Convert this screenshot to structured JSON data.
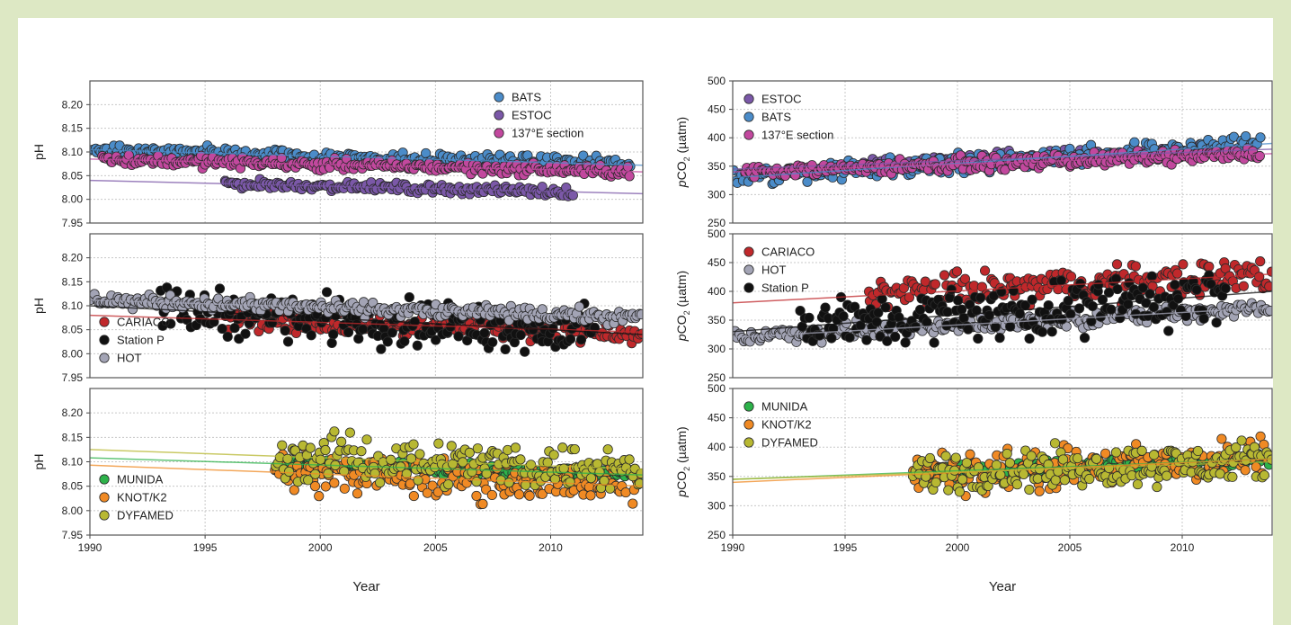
{
  "xaxis": {
    "label": "Year",
    "ticks": [
      "1990",
      "1995",
      "2000",
      "2005",
      "2010"
    ]
  },
  "chart_data": [
    {
      "type": "scatter",
      "side": "left",
      "panel": 1,
      "ylabel": "pH",
      "xlim": [
        1990,
        2014
      ],
      "ylim": [
        7.95,
        8.25
      ],
      "yticks": [
        "7.95",
        "8.00",
        "8.05",
        "8.10",
        "8.15",
        "8.20"
      ],
      "grid": true,
      "legend_position": "top-right",
      "series": [
        {
          "name": "BATS",
          "color": "#4b8cc9",
          "x_range": [
            1990,
            2013.5
          ],
          "trend": [
            8.105,
            8.072
          ],
          "spread": 0.012
        },
        {
          "name": "ESTOC",
          "color": "#7b58a8",
          "x_range": [
            1995.8,
            2011
          ],
          "trend": [
            8.04,
            8.012
          ],
          "spread": 0.008
        },
        {
          "name": "137°E section",
          "color": "#c2489e",
          "x_range": [
            1990.5,
            2013.5
          ],
          "trend": [
            8.085,
            8.058
          ],
          "spread": 0.01
        }
      ]
    },
    {
      "type": "scatter",
      "side": "left",
      "panel": 2,
      "ylabel": "pH",
      "xlim": [
        1990,
        2014
      ],
      "ylim": [
        7.95,
        8.25
      ],
      "yticks": [
        "7.95",
        "8.00",
        "8.05",
        "8.10",
        "8.15",
        "8.20"
      ],
      "grid": true,
      "legend_position": "bottom-left",
      "series": [
        {
          "name": "CARIACO",
          "color": "#c0282b",
          "x_range": [
            1996,
            2014
          ],
          "trend": [
            8.08,
            8.045
          ],
          "spread": 0.02
        },
        {
          "name": "Station P",
          "color": "#111111",
          "x_range": [
            1993,
            2012
          ],
          "trend": [
            8.1,
            8.04
          ],
          "spread": 0.04
        },
        {
          "name": "HOT",
          "color": "#a3a4b5",
          "x_range": [
            1990,
            2014
          ],
          "trend": [
            8.112,
            8.075
          ],
          "spread": 0.012
        }
      ]
    },
    {
      "type": "scatter",
      "side": "left",
      "panel": 3,
      "ylabel": "pH",
      "xlim": [
        1990,
        2014
      ],
      "ylim": [
        7.95,
        8.25
      ],
      "yticks": [
        "7.95",
        "8.00",
        "8.05",
        "8.10",
        "8.15",
        "8.20"
      ],
      "grid": true,
      "legend_position": "bottom-left",
      "series": [
        {
          "name": "MUNIDA",
          "color": "#2db24a",
          "x_range": [
            1998.5,
            2014
          ],
          "trend": [
            8.108,
            8.073
          ],
          "spread": 0.01
        },
        {
          "name": "KNOT/K2",
          "color": "#f08a24",
          "x_range": [
            1998,
            2013.8
          ],
          "trend": [
            8.093,
            8.05
          ],
          "spread": 0.035
        },
        {
          "name": "DYFAMED",
          "color": "#b8b832",
          "x_range": [
            1998,
            2014
          ],
          "trend": [
            8.125,
            8.085
          ],
          "spread": 0.04
        }
      ]
    },
    {
      "type": "scatter",
      "side": "right",
      "panel": 1,
      "ylabel": "pCO2 (µatm)",
      "xlim": [
        1990,
        2014
      ],
      "ylim": [
        250,
        500
      ],
      "yticks": [
        "250",
        "300",
        "350",
        "400",
        "450",
        "500"
      ],
      "grid": true,
      "legend_position": "top-left",
      "series": [
        {
          "name": "ESTOC",
          "color": "#7b58a8",
          "x_range": [
            1995.8,
            2011
          ],
          "trend": [
            345,
            380
          ],
          "spread": 10
        },
        {
          "name": "BATS",
          "color": "#4b8cc9",
          "x_range": [
            1990,
            2013.5
          ],
          "trend": [
            330,
            390
          ],
          "spread": 15
        },
        {
          "name": "137°E section",
          "color": "#c2489e",
          "x_range": [
            1990.5,
            2013.5
          ],
          "trend": [
            340,
            372
          ],
          "spread": 10
        }
      ]
    },
    {
      "type": "scatter",
      "side": "right",
      "panel": 2,
      "ylabel": "pCO2 (µatm)",
      "xlim": [
        1990,
        2014
      ],
      "ylim": [
        250,
        500
      ],
      "yticks": [
        "250",
        "300",
        "350",
        "400",
        "450",
        "500"
      ],
      "grid": true,
      "legend_position": "top-left",
      "series": [
        {
          "name": "CARIACO",
          "color": "#c0282b",
          "x_range": [
            1996,
            2014
          ],
          "trend": [
            380,
            430
          ],
          "spread": 25
        },
        {
          "name": "HOT",
          "color": "#a3a4b5",
          "x_range": [
            1990,
            2014
          ],
          "trend": [
            320,
            372
          ],
          "spread": 12
        },
        {
          "name": "Station P",
          "color": "#111111",
          "x_range": [
            1993,
            2012
          ],
          "trend": [
            330,
            400
          ],
          "spread": 40
        }
      ]
    },
    {
      "type": "scatter",
      "side": "right",
      "panel": 3,
      "ylabel": "pCO2 (µatm)",
      "xlim": [
        1990,
        2014
      ],
      "ylim": [
        250,
        500
      ],
      "yticks": [
        "250",
        "300",
        "350",
        "400",
        "450",
        "500"
      ],
      "grid": true,
      "legend_position": "top-left",
      "series": [
        {
          "name": "MUNIDA",
          "color": "#2db24a",
          "x_range": [
            1998.5,
            2014
          ],
          "trend": [
            345,
            380
          ],
          "spread": 10
        },
        {
          "name": "KNOT/K2",
          "color": "#f08a24",
          "x_range": [
            1998,
            2013.8
          ],
          "trend": [
            340,
            380
          ],
          "spread": 30
        },
        {
          "name": "DYFAMED",
          "color": "#b8b832",
          "x_range": [
            1998,
            2014
          ],
          "trend": [
            345,
            375
          ],
          "spread": 30
        }
      ]
    }
  ]
}
